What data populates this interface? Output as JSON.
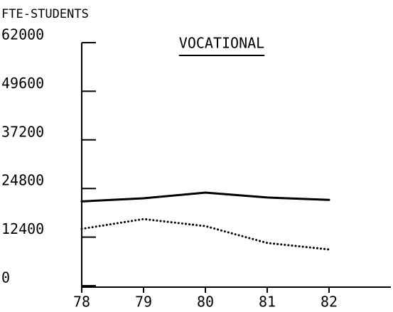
{
  "chart_data": {
    "type": "line",
    "title": "VOCATIONAL",
    "y_label": "FTE-STUDENTS",
    "x": [
      78,
      79,
      80,
      81,
      82
    ],
    "xlim": [
      78,
      83
    ],
    "xticks": [
      78,
      79,
      80,
      81,
      82
    ],
    "ylim": [
      0,
      62000
    ],
    "yticks": [
      0,
      12400,
      24800,
      37200,
      49600,
      62000
    ],
    "series": [
      {
        "color": "#000000",
        "style": "solid",
        "values": [
          21500,
          22300,
          23750,
          22500,
          21900
        ]
      },
      {
        "color": "#000000",
        "style": "dotted",
        "values": [
          14500,
          17000,
          15200,
          10900,
          9250
        ]
      }
    ]
  }
}
